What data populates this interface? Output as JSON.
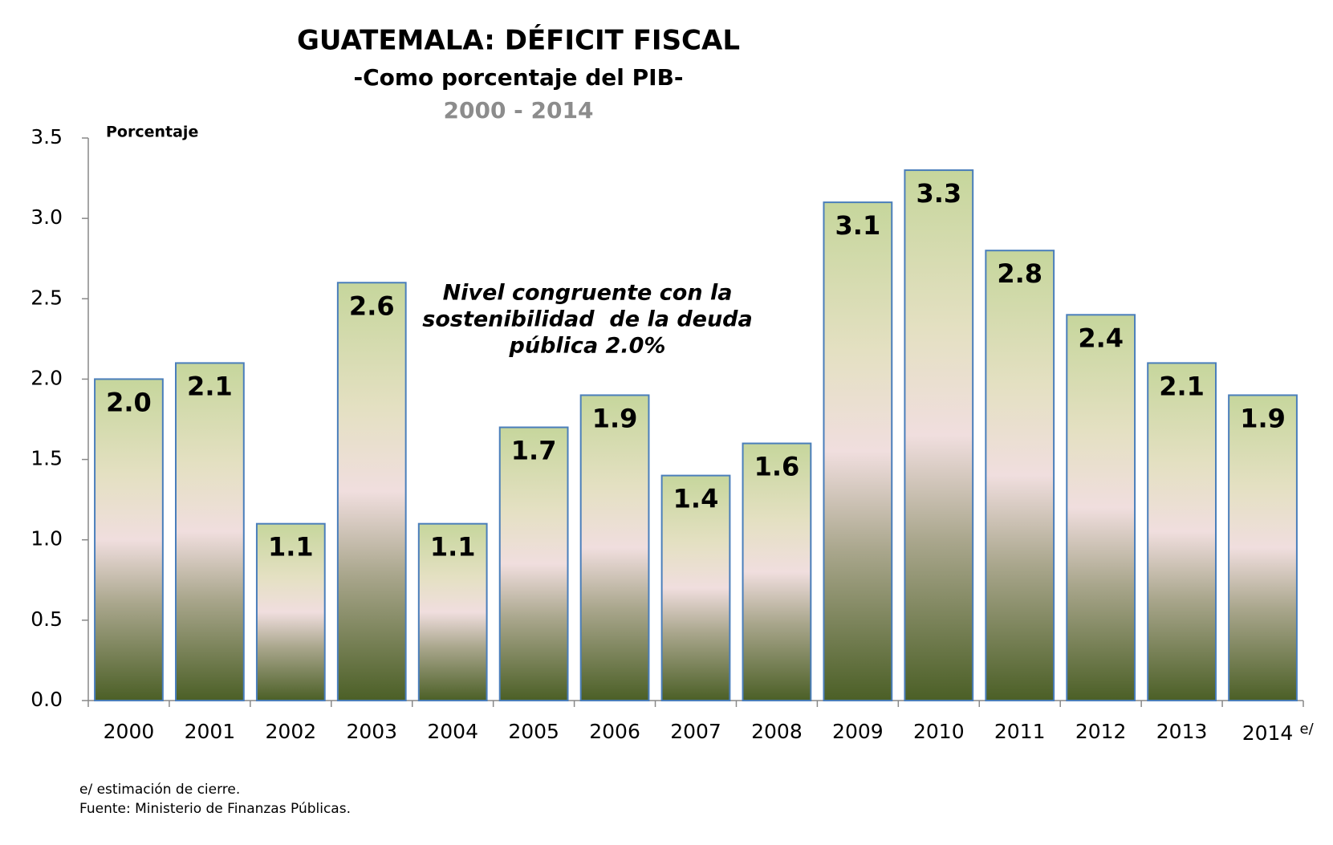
{
  "chart_data": {
    "type": "bar",
    "title": "GUATEMALA: DÉFICIT FISCAL",
    "subtitle": "-Como porcentaje del PIB-",
    "period": "2000 - 2014",
    "y_label": "Porcentaje",
    "categories": [
      "2000",
      "2001",
      "2002",
      "2003",
      "2004",
      "2005",
      "2006",
      "2007",
      "2008",
      "2009",
      "2010",
      "2011",
      "2012",
      "2013",
      "2014"
    ],
    "category_note": "e/",
    "values": [
      2.0,
      2.1,
      1.1,
      2.6,
      1.1,
      1.7,
      1.9,
      1.4,
      1.6,
      3.1,
      3.3,
      2.8,
      2.4,
      2.1,
      1.9
    ],
    "value_labels": [
      "2.0",
      "2.1",
      "1.1",
      "2.6",
      "1.1",
      "1.7",
      "1.9",
      "1.4",
      "1.6",
      "3.1",
      "3.3",
      "2.8",
      "2.4",
      "2.1",
      "1.9"
    ],
    "color": "#4a7ebb",
    "ylim": [
      0,
      3.5
    ],
    "yticks": [
      {
        "value": 0,
        "label": "0.0"
      },
      0.5,
      {
        "value": 1,
        "label": "1.0"
      },
      1.5,
      {
        "value": 2,
        "label": "2.0"
      },
      2.5,
      {
        "value": 3,
        "label": "3.0"
      },
      3.5
    ],
    "annotation": [
      "Nivel congruente con la",
      "sostenibilidad  de la deuda",
      "pública 2.0%"
    ],
    "footnotes": [
      "e/ estimación de cierre.",
      "Fuente: Ministerio de Finanzas Públicas."
    ]
  }
}
